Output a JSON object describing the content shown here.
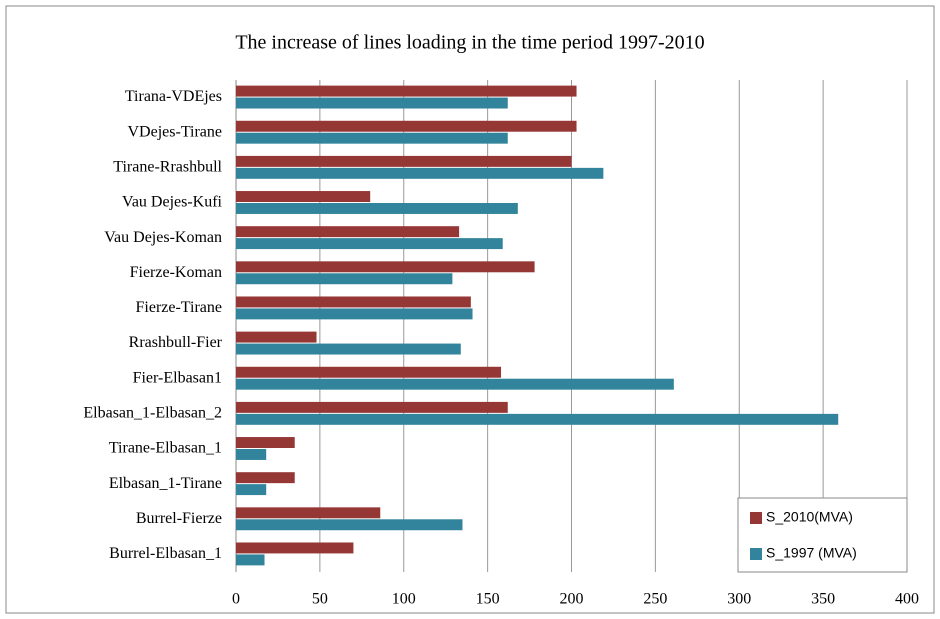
{
  "chart_data": {
    "type": "bar",
    "orientation": "horizontal",
    "title": "The increase of lines loading in the time period 1997-2010",
    "categories": [
      "Tirana-VDEjes",
      "VDejes-Tirane",
      "Tirane-Rrashbull",
      "Vau Dejes-Kufi",
      "Vau Dejes-Koman",
      "Fierze-Koman",
      "Fierze-Tirane",
      "Rrashbull-Fier",
      "Fier-Elbasan1",
      "Elbasan_1-Elbasan_2",
      "Tirane-Elbasan_1",
      "Elbasan_1-Tirane",
      "Burrel-Fierze",
      "Burrel-Elbasan_1"
    ],
    "series": [
      {
        "name": "S_2010(MVA)",
        "color": "#953735",
        "values": [
          203,
          203,
          200,
          80,
          133,
          178,
          140,
          48,
          158,
          162,
          35,
          35,
          86,
          70
        ]
      },
      {
        "name": "S_1997 (MVA)",
        "color": "#31849b",
        "values": [
          162,
          162,
          219,
          168,
          159,
          129,
          141,
          134,
          261,
          359,
          18,
          18,
          135,
          17
        ]
      }
    ],
    "xlim": [
      0,
      400
    ],
    "xticks": [
      0,
      50,
      100,
      150,
      200,
      250,
      300,
      350,
      400
    ],
    "grid": true,
    "legend": "bottom-right"
  }
}
